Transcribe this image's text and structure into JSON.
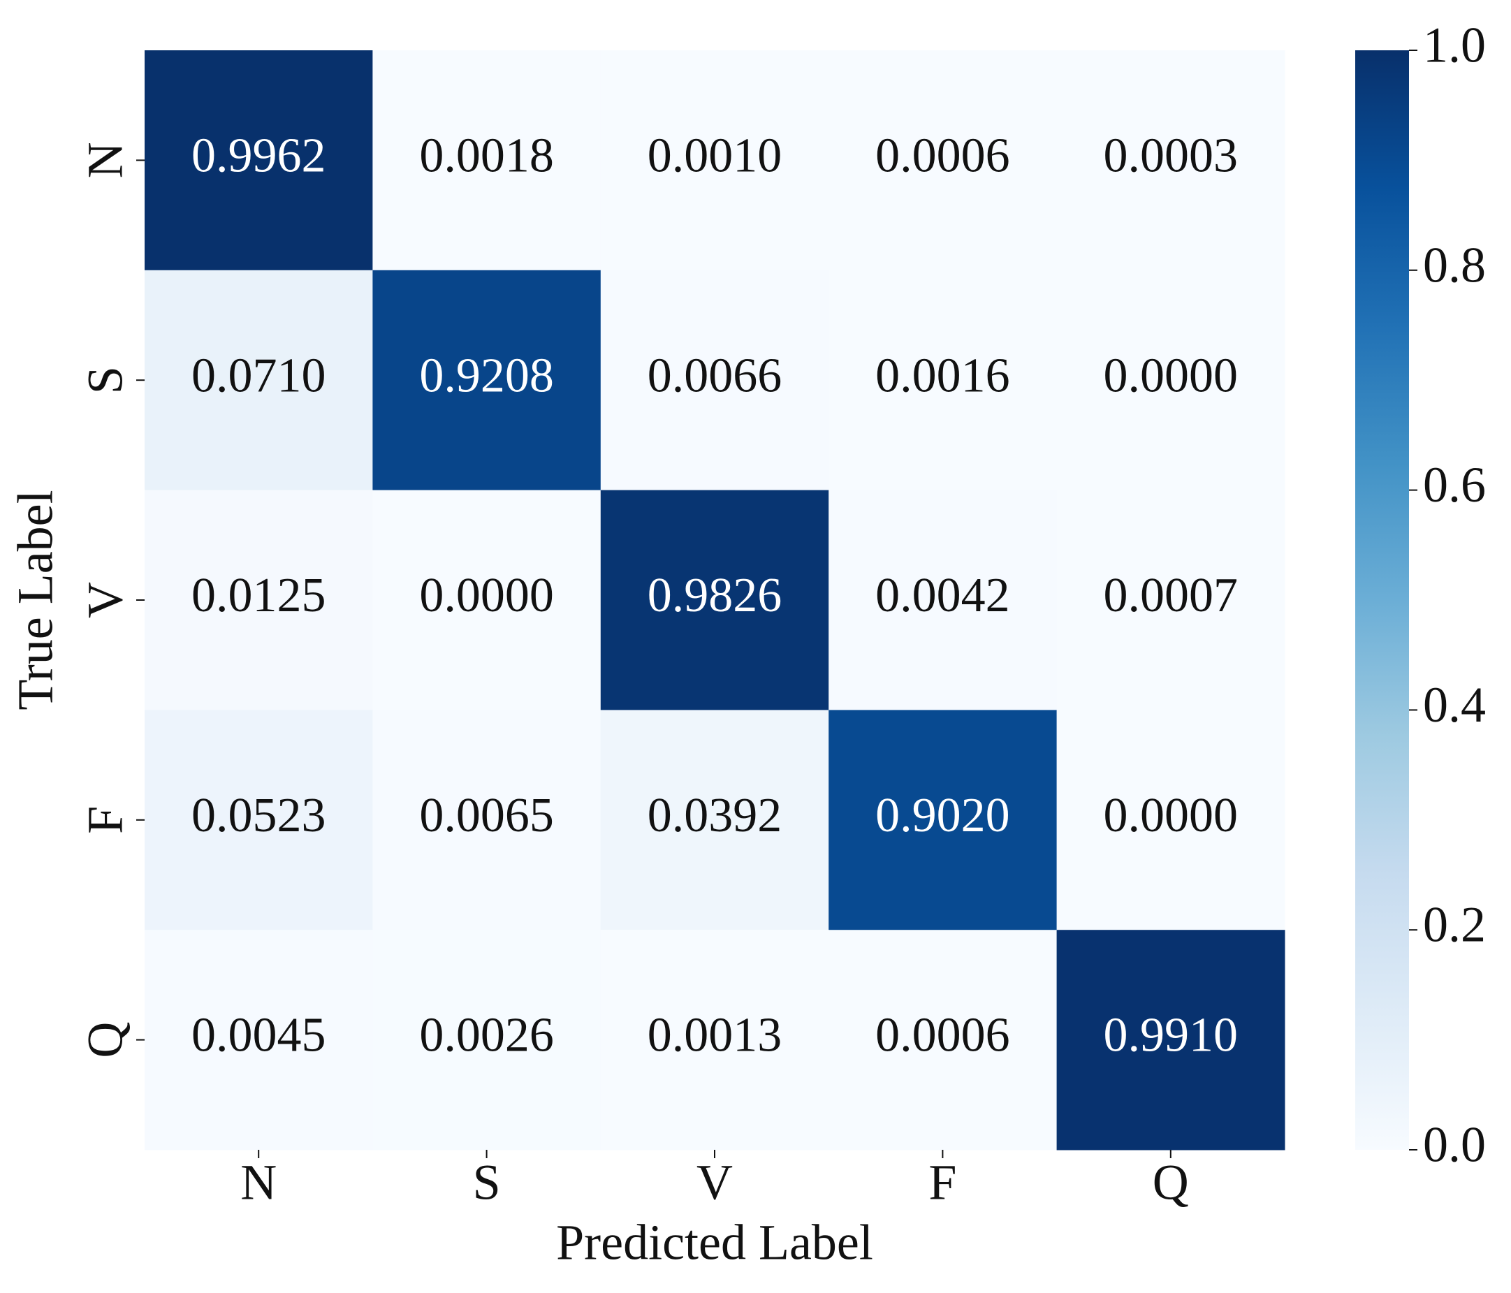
{
  "chart_data": {
    "type": "heatmap",
    "x_label": "Predicted Label",
    "y_label": "True Label",
    "x_categories": [
      "N",
      "S",
      "V",
      "F",
      "Q"
    ],
    "y_categories": [
      "N",
      "S",
      "V",
      "F",
      "Q"
    ],
    "values": [
      [
        0.9962,
        0.0018,
        0.001,
        0.0006,
        0.0003
      ],
      [
        0.071,
        0.9208,
        0.0066,
        0.0016,
        0
      ],
      [
        0.0125,
        0,
        0.9826,
        0.0042,
        0.0007
      ],
      [
        0.0523,
        0.0065,
        0.0392,
        0.902,
        0
      ],
      [
        0.0045,
        0.0026,
        0.0013,
        0.0006,
        0.991
      ]
    ],
    "value_labels": [
      [
        "0.9962",
        "0.0018",
        "0.0010",
        "0.0006",
        "0.0003"
      ],
      [
        "0.0710",
        "0.9208",
        "0.0066",
        "0.0016",
        "0.0000"
      ],
      [
        "0.0125",
        "0.0000",
        "0.9826",
        "0.0042",
        "0.0007"
      ],
      [
        "0.0523",
        "0.0065",
        "0.0392",
        "0.9020",
        "0.0000"
      ],
      [
        "0.0045",
        "0.0026",
        "0.0013",
        "0.0006",
        "0.9910"
      ]
    ],
    "colormap": "Blues",
    "clim": [
      0,
      1
    ],
    "cticks": [
      {
        "value": 0,
        "label": "0.0"
      },
      0.2,
      0.4,
      0.6,
      0.8,
      {
        "value": 1,
        "label": "1.0"
      }
    ]
  }
}
